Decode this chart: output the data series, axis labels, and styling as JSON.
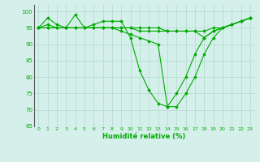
{
  "title": "",
  "xlabel": "Humidité relative (%)",
  "ylabel": "",
  "background_color": "#d5f0eb",
  "grid_color": "#b0d8cc",
  "line_color": "#00aa00",
  "marker_color": "#00aa00",
  "xlim": [
    -0.5,
    23.5
  ],
  "ylim": [
    65,
    102
  ],
  "yticks": [
    65,
    70,
    75,
    80,
    85,
    90,
    95,
    100
  ],
  "xticks": [
    0,
    1,
    2,
    3,
    4,
    5,
    6,
    7,
    8,
    9,
    10,
    11,
    12,
    13,
    14,
    15,
    16,
    17,
    18,
    19,
    20,
    21,
    22,
    23
  ],
  "series": [
    [
      95,
      98,
      96,
      95,
      99,
      95,
      96,
      97,
      97,
      97,
      92,
      82,
      76,
      72,
      71,
      75,
      80,
      87,
      92,
      94,
      95,
      96,
      97,
      98
    ],
    [
      95,
      96,
      95,
      95,
      95,
      95,
      95,
      95,
      95,
      95,
      95,
      94,
      94,
      94,
      94,
      94,
      94,
      94,
      92,
      94,
      95,
      96,
      97,
      98
    ],
    [
      95,
      95,
      95,
      95,
      95,
      95,
      95,
      95,
      95,
      94,
      93,
      92,
      91,
      90,
      71,
      71,
      75,
      80,
      87,
      92,
      95,
      96,
      97,
      98
    ],
    [
      95,
      95,
      95,
      95,
      95,
      95,
      95,
      95,
      95,
      95,
      95,
      95,
      95,
      95,
      94,
      94,
      94,
      94,
      94,
      95,
      95,
      96,
      97,
      98
    ]
  ]
}
